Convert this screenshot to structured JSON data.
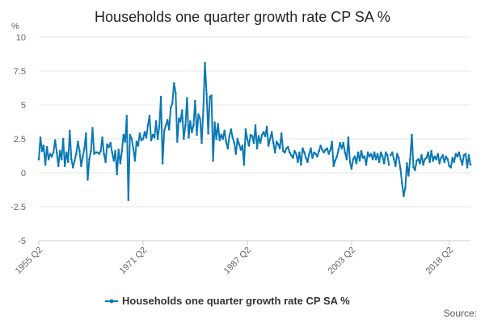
{
  "chart_data": {
    "type": "line",
    "title": "Households one quarter growth rate CP SA %",
    "ylabel": "%",
    "xlabel": "",
    "ylim": [
      -5,
      10
    ],
    "yticks": [
      {
        "value": 10,
        "label": "10"
      },
      {
        "value": 7.5,
        "label": "7.5"
      },
      {
        "value": 5,
        "label": "5"
      },
      {
        "value": 2.5,
        "label": "2.5"
      },
      {
        "value": 0,
        "label": "0"
      },
      {
        "value": -2.5,
        "label": "-2.5"
      },
      {
        "value": -5,
        "label": "-5"
      }
    ],
    "xticks": [
      {
        "index": 0,
        "label": "1955 Q2"
      },
      {
        "index": 64,
        "label": "1971 Q2"
      },
      {
        "index": 128,
        "label": "1987 Q2"
      },
      {
        "index": 192,
        "label": "2003 Q2"
      },
      {
        "index": 252,
        "label": "2018 Q2"
      }
    ],
    "grid": true,
    "legend_position": "bottom",
    "series": [
      {
        "name": "Households one quarter growth rate CP SA %",
        "color": "#0a78b4",
        "start_label": "1955 Q2",
        "gaps_after_index": [
          215
        ],
        "values": [
          1.0,
          2.6,
          1.6,
          2.0,
          0.6,
          1.9,
          1.0,
          1.4,
          1.2,
          1.5,
          2.4,
          1.5,
          0.5,
          1.6,
          1.0,
          2.5,
          0.5,
          1.5,
          0.8,
          3.1,
          1.0,
          0.4,
          0.9,
          1.4,
          2.3,
          1.6,
          0.5,
          1.2,
          1.8,
          2.9,
          -0.5,
          1.0,
          1.6,
          3.3,
          1.4,
          1.5,
          1.5,
          1.4,
          1.6,
          2.6,
          1.4,
          0.8,
          2.1,
          1.9,
          2.2,
          1.5,
          0.9,
          1.6,
          -0.1,
          1.7,
          0.7,
          1.6,
          2.8,
          2.3,
          4.2,
          -2.0,
          2.8,
          2.5,
          1.8,
          0.9,
          2.3,
          2.0,
          2.9,
          2.4,
          2.5,
          3.0,
          2.6,
          3.5,
          4.2,
          2.4,
          2.8,
          2.6,
          3.8,
          2.5,
          3.4,
          5.6,
          0.7,
          3.1,
          3.5,
          3.9,
          3.2,
          4.8,
          5.1,
          6.6,
          5.9,
          2.3,
          4.0,
          3.8,
          4.6,
          2.5,
          3.5,
          5.5,
          2.6,
          3.8,
          3.0,
          3.5,
          5.3,
          2.8,
          4.3,
          4.0,
          2.2,
          4.6,
          8.1,
          5.8,
          2.9,
          5.6,
          5.7,
          0.9,
          3.7,
          2.5,
          3.6,
          2.4,
          2.8,
          2.5,
          3.1,
          2.3,
          1.8,
          2.7,
          3.2,
          2.6,
          2.2,
          1.4,
          2.5,
          2.1,
          1.7,
          2.0,
          0.6,
          3.2,
          2.5,
          2.0,
          2.8,
          2.7,
          2.2,
          3.5,
          1.8,
          2.7,
          2.2,
          2.8,
          3.0,
          2.7,
          3.4,
          2.0,
          2.5,
          3.0,
          2.2,
          1.5,
          2.3,
          2.1,
          1.8,
          2.9,
          1.6,
          1.5,
          1.8,
          1.9,
          1.5,
          1.3,
          1.1,
          1.6,
          1.4,
          0.8,
          1.5,
          0.6,
          1.8,
          1.5,
          1.1,
          0.8,
          1.4,
          1.8,
          1.1,
          1.5,
          1.4,
          1.2,
          1.6,
          2.0,
          1.7,
          1.5,
          1.7,
          1.8,
          1.4,
          1.7,
          2.3,
          0.5,
          0.9,
          1.2,
          1.7,
          2.2,
          1.8,
          2.2,
          1.5,
          1.0,
          2.6,
          0.8,
          0.3,
          1.0,
          1.2,
          0.7,
          1.5,
          0.9,
          1.6,
          1.1,
          1.2,
          0.6,
          1.5,
          1.2,
          1.4,
          1.0,
          1.5,
          1.0,
          1.4,
          0.8,
          1.5,
          1.2,
          0.7,
          1.5,
          1.3,
          0.6,
          1.3,
          1.5,
          1.0,
          0.5,
          1.4,
          1.1,
          0.3,
          -0.8,
          -1.7,
          -1.1,
          0.7,
          -0.2,
          1.0,
          2.8,
          0.4,
          0.2,
          0.9,
          1.0,
          0.7,
          1.3,
          0.6,
          1.0,
          1.1,
          1.5,
          0.8,
          1.6,
          0.9,
          1.2,
          1.0,
          1.4,
          0.7,
          1.1,
          1.3,
          0.8,
          1.2,
          1.0,
          0.5,
          0.4,
          1.1,
          0.8,
          1.4,
          1.2,
          1.5,
          1.0,
          0.6,
          1.3,
          1.4,
          0.4,
          1.3,
          0.6
        ]
      }
    ],
    "source_label": "Source:"
  }
}
